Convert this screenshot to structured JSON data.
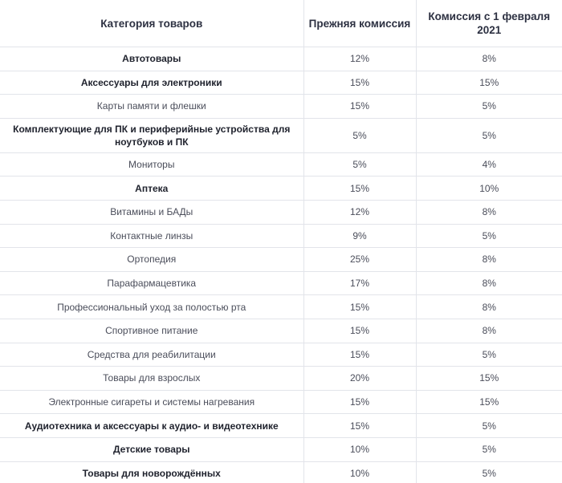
{
  "header": {
    "category": "Категория товаров",
    "previous": "Прежняя комиссия",
    "new": "Комиссия с 1 февраля 2021"
  },
  "rows": [
    {
      "category": "Автотовары",
      "previous": "12%",
      "new": "8%",
      "bold": true
    },
    {
      "category": "Аксессуары для электроники",
      "previous": "15%",
      "new": "15%",
      "bold": true
    },
    {
      "category": "Карты памяти и флешки",
      "previous": "15%",
      "new": "5%",
      "bold": false
    },
    {
      "category": "Комплектующие для ПК и периферийные устройства для ноутбуков и ПК",
      "previous": "5%",
      "new": "5%",
      "bold": true
    },
    {
      "category": "Мониторы",
      "previous": "5%",
      "new": "4%",
      "bold": false
    },
    {
      "category": "Аптека",
      "previous": "15%",
      "new": "10%",
      "bold": true
    },
    {
      "category": "Витамины и БАДы",
      "previous": "12%",
      "new": "8%",
      "bold": false
    },
    {
      "category": "Контактные линзы",
      "previous": "9%",
      "new": "5%",
      "bold": false
    },
    {
      "category": "Ортопедия",
      "previous": "25%",
      "new": "8%",
      "bold": false
    },
    {
      "category": "Парафармацевтика",
      "previous": "17%",
      "new": "8%",
      "bold": false
    },
    {
      "category": "Профессиональный уход за полостью рта",
      "previous": "15%",
      "new": "8%",
      "bold": false
    },
    {
      "category": "Спортивное питание",
      "previous": "15%",
      "new": "8%",
      "bold": false
    },
    {
      "category": "Средства для реабилитации",
      "previous": "15%",
      "new": "5%",
      "bold": false
    },
    {
      "category": "Товары для взрослых",
      "previous": "20%",
      "new": "15%",
      "bold": false
    },
    {
      "category": "Электронные сигареты и системы нагревания",
      "previous": "15%",
      "new": "15%",
      "bold": false
    },
    {
      "category": "Аудиотехника и аксессуары к аудио- и видеотехнике",
      "previous": "15%",
      "new": "5%",
      "bold": true
    },
    {
      "category": "Детские товары",
      "previous": "10%",
      "new": "5%",
      "bold": true
    },
    {
      "category": "Товары для новорождённых",
      "previous": "10%",
      "new": "5%",
      "bold": true
    }
  ]
}
